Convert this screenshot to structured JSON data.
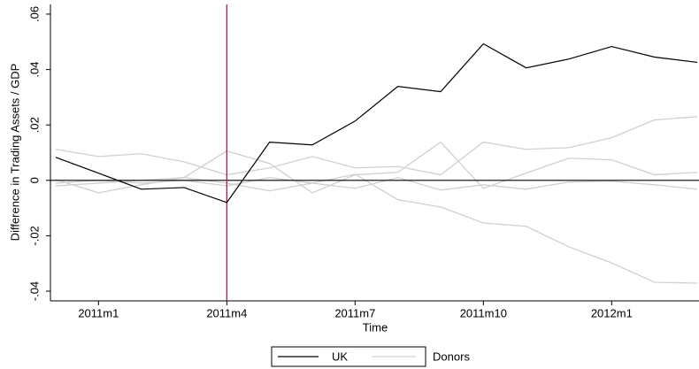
{
  "chart_data": {
    "type": "line",
    "y_label": "Difference in Trading Assets / GDP",
    "x_label": "Time",
    "categories": [
      null,
      "2011m1",
      null,
      null,
      "2011m4",
      null,
      null,
      "2011m7",
      null,
      null,
      "2011m10",
      null,
      null,
      "2012m1",
      null,
      null
    ],
    "vline": "2011m4",
    "vline_color": "#b0203c",
    "hline": 0,
    "ylim": [
      -0.0435,
      0.0635
    ],
    "yticks": [
      {
        "value": 0.06,
        "label": ".06"
      },
      {
        "value": 0.04,
        "label": ".04"
      },
      {
        "value": 0.02,
        "label": ".02"
      },
      0,
      {
        "value": -0.02,
        "label": "-.02"
      },
      {
        "value": -0.04,
        "label": "-.04"
      }
    ],
    "series": [
      {
        "name": "UK",
        "color": "#000000",
        "values": [
          0.0083,
          0.0026,
          -0.0032,
          -0.0026,
          -0.008,
          0.0138,
          0.0128,
          0.0214,
          0.0339,
          0.032,
          0.0493,
          0.0406,
          0.0438,
          0.0483,
          0.0445,
          0.0426
        ]
      },
      {
        "name": "Donors",
        "color": "#d0d0d0",
        "values": [
          [
            0.0112,
            0.0086,
            0.0096,
            0.0067,
            0.002,
            0.0045,
            0.0086,
            0.0045,
            0.005,
            0.002,
            0.0138,
            0.0112,
            0.0118,
            0.0154,
            0.0218,
            0.023
          ],
          [
            -0.001,
            0,
            -0.001,
            0,
            -0.002,
            0.001,
            -0.001,
            0.0022,
            -0.007,
            -0.0096,
            -0.0154,
            -0.0166,
            -0.024,
            -0.0298,
            -0.0368,
            -0.0371
          ],
          [
            -0.002,
            -0.001,
            0,
            0.001,
            0.0106,
            0.0061,
            -0.0045,
            0.002,
            0.0029,
            0.0138,
            -0.0029,
            0.0026,
            0.008,
            0.0074,
            0.002,
            0.0029
          ],
          [
            0.0003,
            -0.0045,
            -0.0016,
            0.001,
            -0.001,
            -0.0038,
            -0.001,
            -0.0029,
            0.001,
            -0.0035,
            -0.0016,
            -0.0032,
            -0.0006,
            -0.0003,
            -0.0016,
            -0.0032
          ]
        ]
      }
    ]
  }
}
